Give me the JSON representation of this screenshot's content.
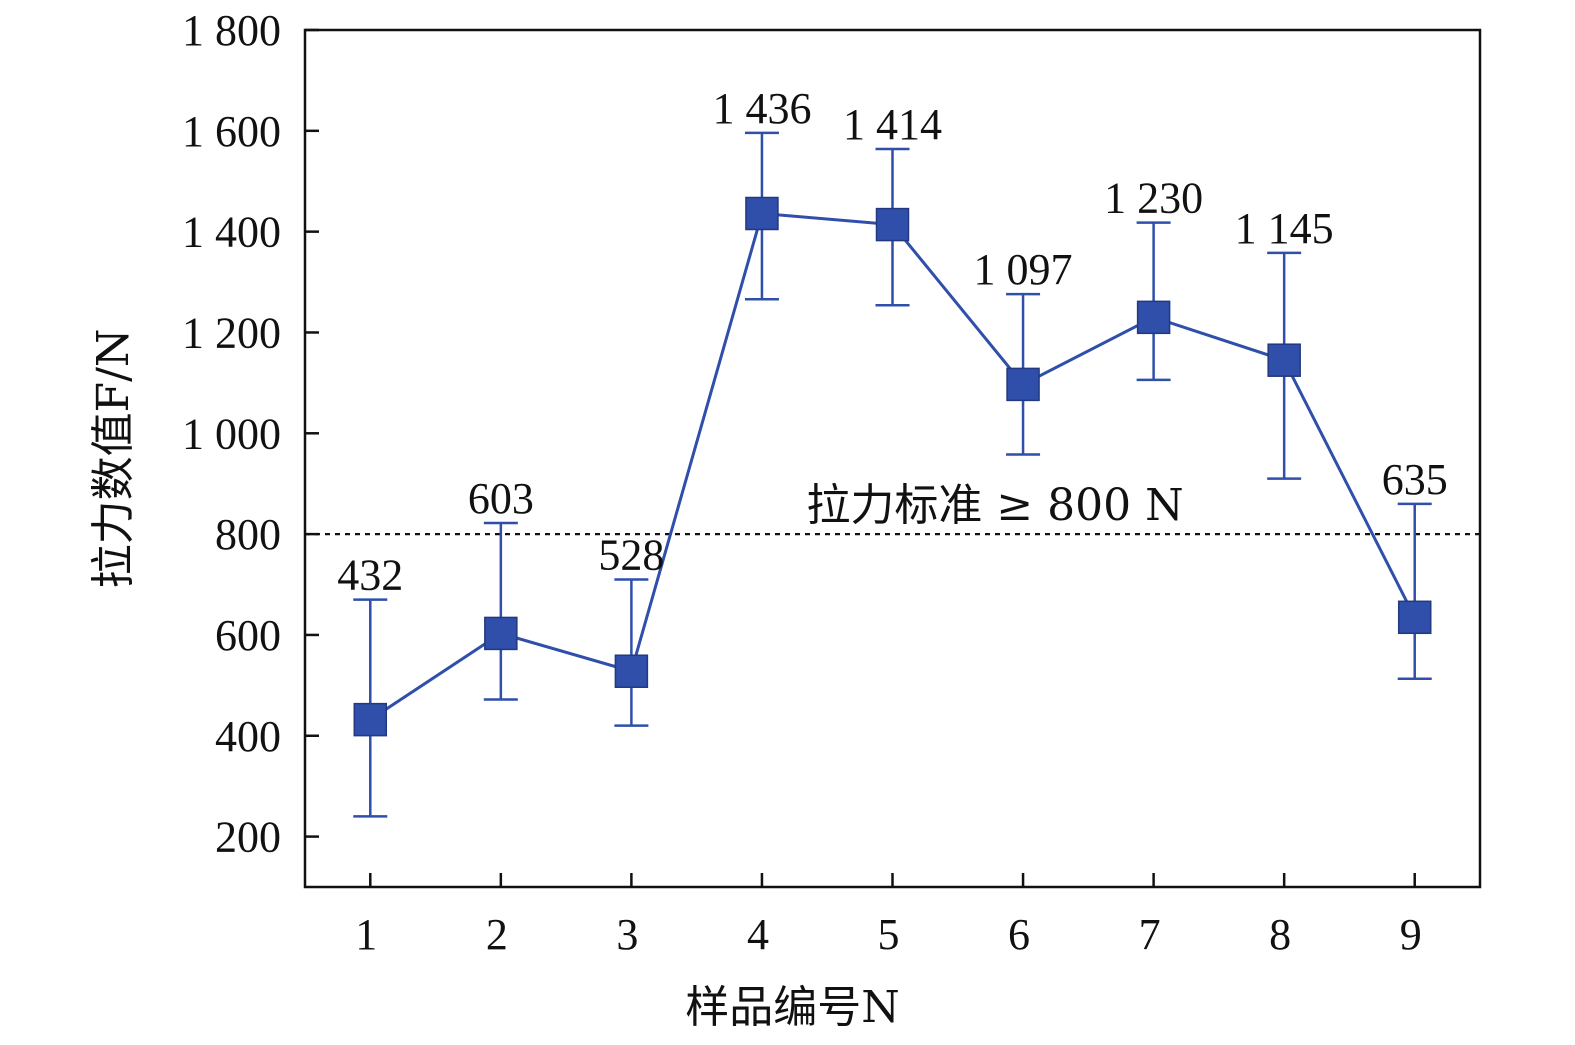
{
  "chart_data": {
    "type": "line",
    "x": [
      1,
      2,
      3,
      4,
      5,
      6,
      7,
      8,
      9
    ],
    "series": [
      {
        "values": [
          432,
          603,
          528,
          1436,
          1414,
          1097,
          1230,
          1145,
          635
        ],
        "error_low": [
          240,
          472,
          420,
          1266,
          1254,
          958,
          1106,
          910,
          513
        ],
        "error_high": [
          670,
          822,
          710,
          1596,
          1564,
          1276,
          1418,
          1358,
          860
        ],
        "color": "#2f4faa",
        "marker": "square"
      }
    ],
    "data_labels": [
      "432",
      "603",
      "528",
      "1 436",
      "1 414",
      "1 097",
      "1 230",
      "1 145",
      "635"
    ],
    "xlabel": "样品编号N",
    "ylabel": "拉力数值F/N",
    "xlim": [
      0.5,
      9.5
    ],
    "ylim": [
      100,
      1800
    ],
    "x_ticks": [
      "1",
      "2",
      "3",
      "4",
      "5",
      "6",
      "7",
      "8",
      "9"
    ],
    "y_ticks": [
      200,
      400,
      600,
      800,
      1000,
      1200,
      1400,
      1600,
      1800
    ],
    "y_tick_labels": [
      "200",
      "400",
      "600",
      "800",
      "1 000",
      "1 200",
      "1 400",
      "1 600",
      "1 800"
    ],
    "reference_line": {
      "value": 800,
      "label": "拉力标准 ≥ 800 N",
      "style": "dotted"
    },
    "grid": false
  }
}
